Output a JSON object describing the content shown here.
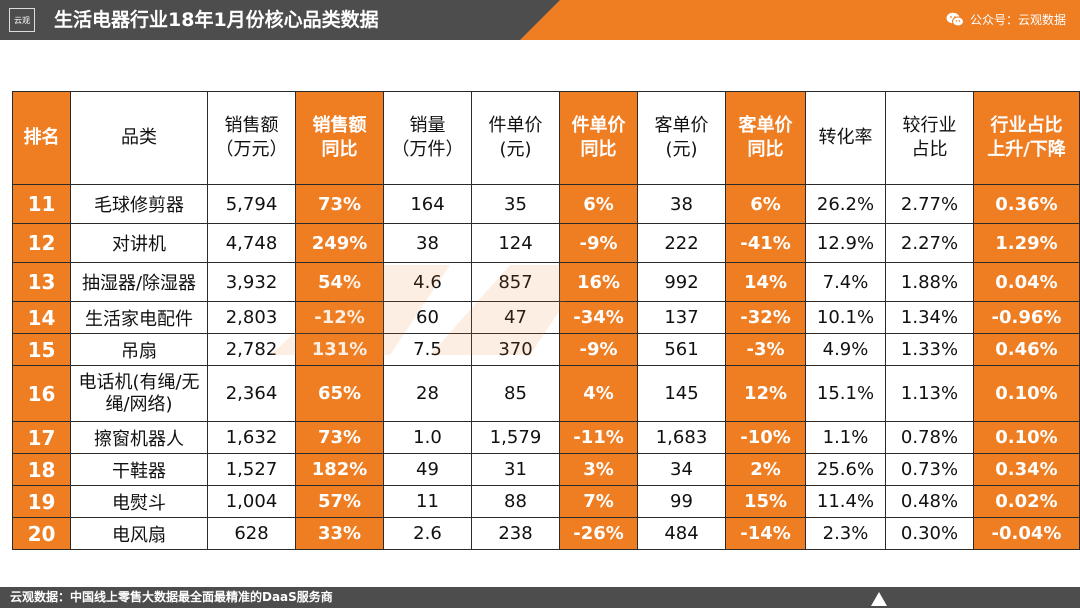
{
  "header": {
    "logo_text": "云观",
    "title": "生活电器行业18年1月份核心品类数据",
    "wechat_label": "公众号：云观数据"
  },
  "colors": {
    "accent": "#ef7d22",
    "dark": "#4d4d4d"
  },
  "table": {
    "headers": [
      {
        "l1": "排名",
        "l2": ""
      },
      {
        "l1": "品类",
        "l2": ""
      },
      {
        "l1": "销售额",
        "l2": "（万元）"
      },
      {
        "l1": "销售额",
        "l2": "同比"
      },
      {
        "l1": "销量",
        "l2": "（万件）"
      },
      {
        "l1": "件单价",
        "l2": "(元)"
      },
      {
        "l1": "件单价",
        "l2": "同比"
      },
      {
        "l1": "客单价",
        "l2": "(元)"
      },
      {
        "l1": "客单价",
        "l2": "同比"
      },
      {
        "l1": "转化率",
        "l2": ""
      },
      {
        "l1": "较行业",
        "l2": "占比"
      },
      {
        "l1": "行业占比",
        "l2": "上升/下降"
      }
    ],
    "rows": [
      [
        "11",
        "毛球修剪器",
        "5,794",
        "73%",
        "164",
        "35",
        "6%",
        "38",
        "6%",
        "26.2%",
        "2.77%",
        "0.36%"
      ],
      [
        "12",
        "对讲机",
        "4,748",
        "249%",
        "38",
        "124",
        "-9%",
        "222",
        "-41%",
        "12.9%",
        "2.27%",
        "1.29%"
      ],
      [
        "13",
        "抽湿器/除湿器",
        "3,932",
        "54%",
        "4.6",
        "857",
        "16%",
        "992",
        "14%",
        "7.4%",
        "1.88%",
        "0.04%"
      ],
      [
        "14",
        "生活家电配件",
        "2,803",
        "-12%",
        "60",
        "47",
        "-34%",
        "137",
        "-32%",
        "10.1%",
        "1.34%",
        "-0.96%"
      ],
      [
        "15",
        "吊扇",
        "2,782",
        "131%",
        "7.5",
        "370",
        "-9%",
        "561",
        "-3%",
        "4.9%",
        "1.33%",
        "0.46%"
      ],
      [
        "16",
        "电话机(有绳/无绳/网络)",
        "2,364",
        "65%",
        "28",
        "85",
        "4%",
        "145",
        "12%",
        "15.1%",
        "1.13%",
        "0.10%"
      ],
      [
        "17",
        "擦窗机器人",
        "1,632",
        "73%",
        "1.0",
        "1,579",
        "-11%",
        "1,683",
        "-10%",
        "1.1%",
        "0.78%",
        "0.10%"
      ],
      [
        "18",
        "干鞋器",
        "1,527",
        "182%",
        "49",
        "31",
        "3%",
        "34",
        "2%",
        "25.6%",
        "0.73%",
        "0.34%"
      ],
      [
        "19",
        "电熨斗",
        "1,004",
        "57%",
        "11",
        "88",
        "7%",
        "99",
        "15%",
        "11.4%",
        "0.48%",
        "0.02%"
      ],
      [
        "20",
        "电风扇",
        "628",
        "33%",
        "2.6",
        "238",
        "-26%",
        "484",
        "-14%",
        "2.3%",
        "0.30%",
        "-0.04%"
      ]
    ]
  },
  "footer": {
    "text": "云观数据：中国线上零售大数据最全面最精准的DaaS服务商"
  }
}
